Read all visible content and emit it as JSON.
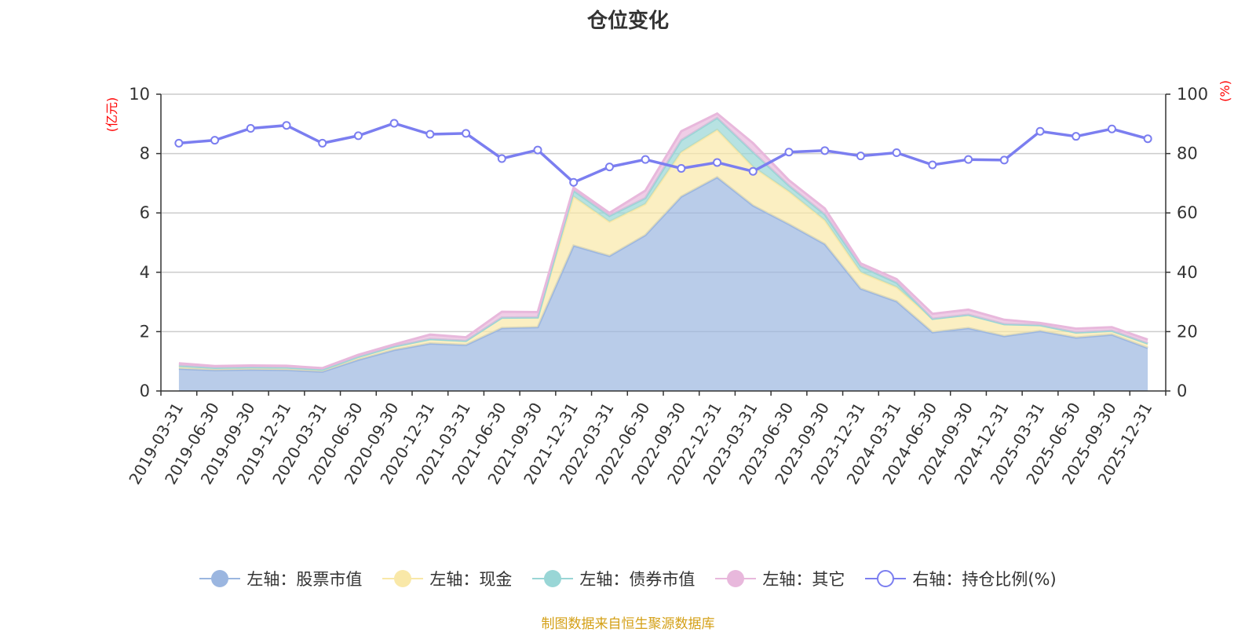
{
  "chart_data": {
    "type": "area",
    "title": "仓位变化",
    "ylabel_left": "(亿元)",
    "ylabel_right": "(%)",
    "ylim_left": [
      0,
      10
    ],
    "ylim_right": [
      0,
      100
    ],
    "yticks_left": [
      "0",
      "2",
      "4",
      "6",
      "8",
      "10"
    ],
    "yticks_right": [
      "0",
      "20",
      "40",
      "60",
      "80",
      "100"
    ],
    "grid": true,
    "legend_position": "bottom",
    "categories": [
      "2019-03-31",
      "2019-06-30",
      "2019-09-30",
      "2019-12-31",
      "2020-03-31",
      "2020-06-30",
      "2020-09-30",
      "2020-12-31",
      "2021-03-31",
      "2021-06-30",
      "2021-09-30",
      "2021-12-31",
      "2022-03-31",
      "2022-06-30",
      "2022-09-30",
      "2022-12-31",
      "2023-03-31",
      "2023-06-30",
      "2023-09-30",
      "2023-12-31",
      "2024-03-31",
      "2024-06-30",
      "2024-09-30",
      "2024-12-31",
      "2025-03-31",
      "2025-06-30",
      "2025-09-30",
      "2025-12-31"
    ],
    "series": [
      {
        "name": "左轴：股票市值",
        "axis": "left",
        "stacked": true,
        "color": "#9bb6e0",
        "values": [
          0.75,
          0.7,
          0.72,
          0.71,
          0.65,
          1.05,
          1.38,
          1.6,
          1.55,
          2.12,
          2.15,
          4.9,
          4.55,
          5.25,
          6.55,
          7.2,
          6.25,
          5.62,
          4.95,
          3.45,
          3.02,
          1.98,
          2.12,
          1.85,
          2.02,
          1.8,
          1.9,
          1.45
        ]
      },
      {
        "name": "左轴：现金",
        "axis": "left",
        "stacked": true,
        "color": "#f9e8a8",
        "values": [
          0.1,
          0.08,
          0.08,
          0.08,
          0.07,
          0.1,
          0.12,
          0.15,
          0.14,
          0.35,
          0.33,
          1.65,
          1.15,
          1.05,
          1.5,
          1.6,
          1.3,
          1.1,
          0.8,
          0.55,
          0.48,
          0.45,
          0.45,
          0.4,
          0.2,
          0.17,
          0.13,
          0.15
        ]
      },
      {
        "name": "左轴：债券市值",
        "axis": "left",
        "stacked": true,
        "color": "#99d6d6",
        "values": [
          0.0,
          0.0,
          0.0,
          0.0,
          0.0,
          0.0,
          0.0,
          0.0,
          0.0,
          0.0,
          0.0,
          0.2,
          0.2,
          0.2,
          0.4,
          0.4,
          0.5,
          0.2,
          0.2,
          0.2,
          0.15,
          0.0,
          0.0,
          0.0,
          0.0,
          0.0,
          0.0,
          0.0
        ]
      },
      {
        "name": "左轴：其它",
        "axis": "left",
        "stacked": true,
        "color": "#e8b8dc",
        "values": [
          0.08,
          0.06,
          0.06,
          0.06,
          0.05,
          0.07,
          0.07,
          0.15,
          0.12,
          0.2,
          0.18,
          0.1,
          0.1,
          0.25,
          0.3,
          0.15,
          0.3,
          0.18,
          0.2,
          0.1,
          0.12,
          0.17,
          0.17,
          0.15,
          0.07,
          0.13,
          0.12,
          0.13
        ]
      },
      {
        "name": "右轴：持仓比例(%)",
        "axis": "right",
        "type": "line",
        "color": "#7b7ef0",
        "values": [
          83.5,
          84.5,
          88.5,
          89.5,
          83.5,
          86,
          90.2,
          86.5,
          86.8,
          78.3,
          81.2,
          70.3,
          75.5,
          78,
          75,
          77,
          74,
          80.5,
          81,
          79.2,
          80.3,
          76.2,
          78,
          77.8,
          87.5,
          85.8,
          88.3,
          85
        ]
      }
    ],
    "source_note": "制图数据来自恒生聚源数据库"
  }
}
